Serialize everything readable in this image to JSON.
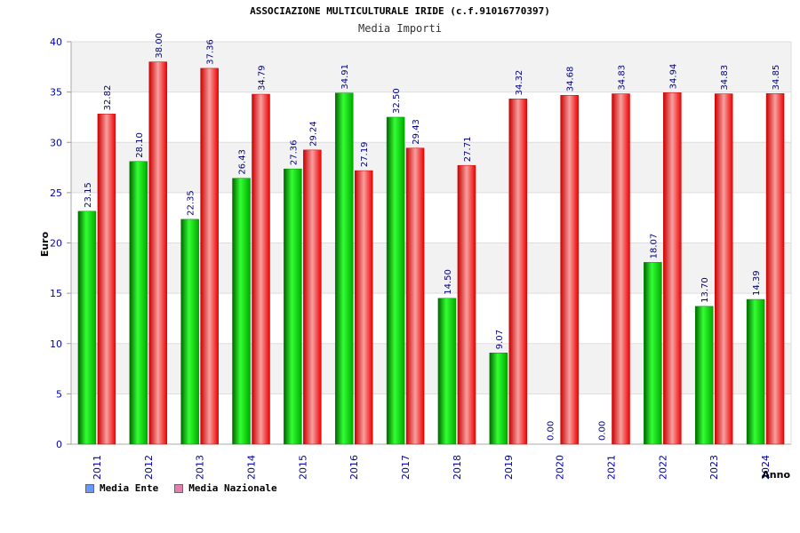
{
  "chart_data": {
    "type": "bar",
    "title": "ASSOCIAZIONE MULTICULTURALE IRIDE (c.f.91016770397)",
    "subtitle": "Media Importi",
    "xlabel": "Anno",
    "ylabel": "Euro",
    "ylim": [
      0,
      40
    ],
    "yticks": [
      0,
      5,
      10,
      15,
      20,
      25,
      30,
      35,
      40
    ],
    "categories": [
      "2011",
      "2012",
      "2013",
      "2014",
      "2015",
      "2016",
      "2017",
      "2018",
      "2019",
      "2020",
      "2021",
      "2022",
      "2023",
      "2024"
    ],
    "series": [
      {
        "name": "Media Ente",
        "color": "#00cc00",
        "legend_color": "#6699ff",
        "values": [
          23.15,
          28.1,
          22.35,
          26.43,
          27.36,
          34.91,
          32.5,
          14.5,
          9.07,
          0.0,
          0.0,
          18.07,
          13.7,
          14.39
        ],
        "labels": [
          "23.15",
          "28.10",
          "22.35",
          "26.43",
          "27.36",
          "34.91",
          "32.50",
          "14.50",
          "9.07",
          "0.00",
          "0.00",
          "18.07",
          "13.70",
          "14.39"
        ]
      },
      {
        "name": "Media Nazionale",
        "color": "#ee1111",
        "legend_color": "#e07fb0",
        "values": [
          32.82,
          38.0,
          37.36,
          34.79,
          29.24,
          27.19,
          29.43,
          27.71,
          34.32,
          34.68,
          34.83,
          34.94,
          34.83,
          34.85
        ],
        "labels": [
          "32.82",
          "38.00",
          "37.36",
          "34.79",
          "29.24",
          "27.19",
          "29.43",
          "27.71",
          "34.32",
          "34.68",
          "34.83",
          "34.94",
          "34.83",
          "34.85"
        ]
      }
    ],
    "grid": true,
    "legend_position": "bottom-left"
  }
}
